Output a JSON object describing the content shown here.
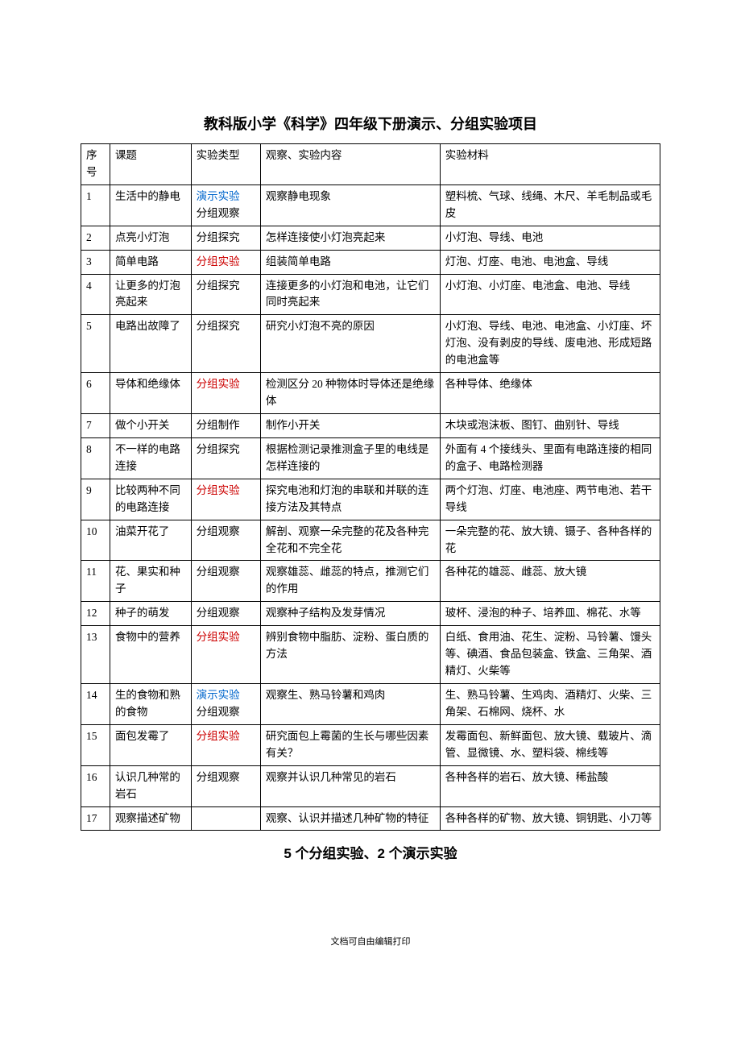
{
  "title": "教科版小学《科学》四年级下册演示、分组实验项目",
  "columns": [
    "序号",
    "课题",
    "实验类型",
    "观察、实验内容",
    "实验材料"
  ],
  "colors": {
    "red": "#cc0000",
    "blue": "#0066cc",
    "text": "#000000",
    "border": "#000000",
    "background": "#ffffff"
  },
  "typography": {
    "title_fontsize": 18,
    "body_fontsize": 13.5,
    "summary_fontsize": 17
  },
  "column_widths_pct": [
    5,
    14,
    12,
    31,
    38
  ],
  "rows": [
    {
      "num": "1",
      "topic": "生活中的静电",
      "type": [
        {
          "text": "演示实验",
          "color": "blue"
        },
        {
          "text": "分组观察",
          "color": ""
        }
      ],
      "content": "观察静电现象",
      "material": "塑料梳、气球、线绳、木尺、羊毛制品或毛皮"
    },
    {
      "num": "2",
      "topic": "点亮小灯泡",
      "type": [
        {
          "text": "分组探究",
          "color": ""
        }
      ],
      "content": "怎样连接使小灯泡亮起来",
      "material": "小灯泡、导线、电池"
    },
    {
      "num": "3",
      "topic": "简单电路",
      "type": [
        {
          "text": "分组实验",
          "color": "red"
        }
      ],
      "content": "组装简单电路",
      "material": "灯泡、灯座、电池、电池盒、导线"
    },
    {
      "num": "4",
      "topic": "让更多的灯泡亮起来",
      "type": [
        {
          "text": "分组探究",
          "color": ""
        }
      ],
      "content": "连接更多的小灯泡和电池，让它们同时亮起来",
      "material": "小灯泡、小灯座、电池盒、电池、导线"
    },
    {
      "num": "5",
      "topic": "电路出故障了",
      "type": [
        {
          "text": "分组探究",
          "color": ""
        }
      ],
      "content": "研究小灯泡不亮的原因",
      "material": "小灯泡、导线、电池、电池盒、小灯座、坏灯泡、没有剥皮的导线、废电池、形成短路的电池盒等"
    },
    {
      "num": "6",
      "topic": "导体和绝缘体",
      "type": [
        {
          "text": "分组实验",
          "color": "red"
        }
      ],
      "content": "检测区分 20 种物体时导体还是绝缘体",
      "material": "各种导体、绝缘体"
    },
    {
      "num": "7",
      "topic": "做个小开关",
      "type": [
        {
          "text": "分组制作",
          "color": ""
        }
      ],
      "content": "制作小开关",
      "material": "木块或泡沫板、图钉、曲别针、导线"
    },
    {
      "num": "8",
      "topic": "不一样的电路连接",
      "type": [
        {
          "text": "分组探究",
          "color": ""
        }
      ],
      "content": "根据检测记录推测盒子里的电线是怎样连接的",
      "material": "外面有 4 个接线头、里面有电路连接的相同的盒子、电路检测器"
    },
    {
      "num": "9",
      "topic": "比较两种不同的电路连接",
      "type": [
        {
          "text": "分组实验",
          "color": "red"
        }
      ],
      "content": "探究电池和灯泡的串联和并联的连接方法及其特点",
      "material": "两个灯泡、灯座、电池座、两节电池、若干导线"
    },
    {
      "num": "10",
      "topic": "油菜开花了",
      "type": [
        {
          "text": "分组观察",
          "color": ""
        }
      ],
      "content": "解剖、观察一朵完整的花及各种完全花和不完全花",
      "material": "一朵完整的花、放大镜、镊子、各种各样的花"
    },
    {
      "num": "11",
      "topic": "花、果实和种子",
      "type": [
        {
          "text": "分组观察",
          "color": ""
        }
      ],
      "content": "观察雄蕊、雌蕊的特点，推测它们的作用",
      "material": "各种花的雄蕊、雌蕊、放大镜"
    },
    {
      "num": "12",
      "topic": "种子的萌发",
      "type": [
        {
          "text": "分组观察",
          "color": ""
        }
      ],
      "content": "观察种子结构及发芽情况",
      "material": "玻杯、浸泡的种子、培养皿、棉花、水等"
    },
    {
      "num": "13",
      "topic": "食物中的营养",
      "type": [
        {
          "text": "分组实验",
          "color": "red"
        }
      ],
      "content": "辨别食物中脂肪、淀粉、蛋白质的方法",
      "material": "白纸、食用油、花生、淀粉、马铃薯、馒头等、碘酒、食品包装盒、铁盒、三角架、酒精灯、火柴等"
    },
    {
      "num": "14",
      "topic": "生的食物和熟的食物",
      "type": [
        {
          "text": "演示实验",
          "color": "blue"
        },
        {
          "text": "分组观察",
          "color": ""
        }
      ],
      "content": "观察生、熟马铃薯和鸡肉",
      "material": "生、熟马铃薯、生鸡肉、酒精灯、火柴、三角架、石棉网、烧杯、水"
    },
    {
      "num": "15",
      "topic": "面包发霉了",
      "type": [
        {
          "text": "分组实验",
          "color": "red"
        }
      ],
      "content": "研究面包上霉菌的生长与哪些因素有关？",
      "material": "发霉面包、新鲜面包、放大镜、载玻片、滴管、显微镜、水、塑料袋、棉线等"
    },
    {
      "num": "16",
      "topic": "认识几种常的岩石",
      "type": [
        {
          "text": "分组观察",
          "color": ""
        }
      ],
      "content": "观察并认识几种常见的岩石",
      "material": "各种各样的岩石、放大镜、稀盐酸"
    },
    {
      "num": "17",
      "topic": "观察描述矿物",
      "type": [],
      "content": "观察、认识并描述几种矿物的特征",
      "material": "各种各样的矿物、放大镜、铜钥匙、小刀等"
    }
  ],
  "summary": "5 个分组实验、2 个演示实验",
  "footer": "文档可自由编辑打印"
}
